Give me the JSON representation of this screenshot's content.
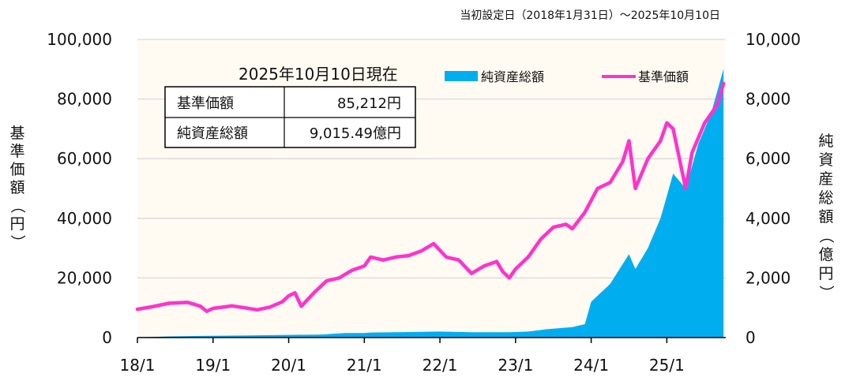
{
  "header_note": "当初設定日（2018年1月31日）～2025年10月10日",
  "info_box": {
    "title": "2025年10月10日現在",
    "rows": [
      {
        "label": "基準価額",
        "value": "85,212円"
      },
      {
        "label": "純資産総額",
        "value": "9,015.49億円"
      }
    ]
  },
  "colors": {
    "nav": "#ff33cc",
    "aum": "#00aeef",
    "plot_bg": "#fffaf2",
    "grid": "#d9d9d9"
  },
  "chart_data": {
    "type": "line+area",
    "xlabel": "",
    "x_ticks": [
      "18/1",
      "19/1",
      "20/1",
      "21/1",
      "22/1",
      "23/1",
      "24/1",
      "25/1"
    ],
    "x_range": [
      "2018-01",
      "2025-10"
    ],
    "left_axis": {
      "label": "基準価額（円）",
      "min": 0,
      "max": 100000,
      "ticks": [
        "0",
        "20,000",
        "40,000",
        "60,000",
        "80,000",
        "100,000"
      ]
    },
    "right_axis": {
      "label": "純資産総額（億円）",
      "min": 0,
      "max": 10000,
      "ticks": [
        "0",
        "2,000",
        "4,000",
        "6,000",
        "8,000",
        "10,000"
      ]
    },
    "legend": [
      {
        "name": "純資産総額",
        "kind": "area"
      },
      {
        "name": "基準価額",
        "kind": "line"
      }
    ],
    "legend_position": "top-right",
    "grid": true,
    "series": [
      {
        "name": "基準価額",
        "axis": "left",
        "points": [
          [
            "2018-01",
            9500
          ],
          [
            "2018-03",
            10200
          ],
          [
            "2018-06",
            11500
          ],
          [
            "2018-09",
            11800
          ],
          [
            "2018-11",
            10500
          ],
          [
            "2018-12",
            8800
          ],
          [
            "2019-01",
            9800
          ],
          [
            "2019-04",
            10600
          ],
          [
            "2019-06",
            10000
          ],
          [
            "2019-08",
            9300
          ],
          [
            "2019-10",
            10200
          ],
          [
            "2019-12",
            12000
          ],
          [
            "2020-01",
            14000
          ],
          [
            "2020-02",
            15000
          ],
          [
            "2020-03",
            10500
          ],
          [
            "2020-05",
            15000
          ],
          [
            "2020-07",
            19000
          ],
          [
            "2020-09",
            20000
          ],
          [
            "2020-11",
            22500
          ],
          [
            "2021-01",
            24000
          ],
          [
            "2021-02",
            27000
          ],
          [
            "2021-04",
            26000
          ],
          [
            "2021-06",
            27000
          ],
          [
            "2021-08",
            27500
          ],
          [
            "2021-10",
            29000
          ],
          [
            "2021-12",
            31500
          ],
          [
            "2022-02",
            27000
          ],
          [
            "2022-04",
            26000
          ],
          [
            "2022-06",
            21500
          ],
          [
            "2022-08",
            24000
          ],
          [
            "2022-10",
            25500
          ],
          [
            "2022-11",
            22000
          ],
          [
            "2022-12",
            20000
          ],
          [
            "2023-01",
            23000
          ],
          [
            "2023-03",
            27000
          ],
          [
            "2023-05",
            33000
          ],
          [
            "2023-07",
            37000
          ],
          [
            "2023-09",
            38000
          ],
          [
            "2023-10",
            36500
          ],
          [
            "2023-12",
            42000
          ],
          [
            "2024-02",
            50000
          ],
          [
            "2024-04",
            52000
          ],
          [
            "2024-06",
            59000
          ],
          [
            "2024-07",
            66000
          ],
          [
            "2024-08",
            50000
          ],
          [
            "2024-10",
            60000
          ],
          [
            "2024-12",
            66000
          ],
          [
            "2025-01",
            72000
          ],
          [
            "2025-02",
            70000
          ],
          [
            "2025-03",
            60000
          ],
          [
            "2025-04",
            50000
          ],
          [
            "2025-05",
            62000
          ],
          [
            "2025-07",
            72000
          ],
          [
            "2025-09",
            78000
          ],
          [
            "2025-10",
            85212
          ]
        ]
      },
      {
        "name": "純資産総額",
        "axis": "right",
        "points": [
          [
            "2018-01",
            5
          ],
          [
            "2018-06",
            40
          ],
          [
            "2019-01",
            60
          ],
          [
            "2019-06",
            70
          ],
          [
            "2020-01",
            90
          ],
          [
            "2020-06",
            100
          ],
          [
            "2020-10",
            150
          ],
          [
            "2021-01",
            150
          ],
          [
            "2021-02",
            170
          ],
          [
            "2021-06",
            180
          ],
          [
            "2022-01",
            200
          ],
          [
            "2022-06",
            180
          ],
          [
            "2022-12",
            180
          ],
          [
            "2023-03",
            200
          ],
          [
            "2023-06",
            280
          ],
          [
            "2023-10",
            350
          ],
          [
            "2023-12",
            450
          ],
          [
            "2024-01",
            1200
          ],
          [
            "2024-04",
            1800
          ],
          [
            "2024-07",
            2800
          ],
          [
            "2024-08",
            2300
          ],
          [
            "2024-10",
            3000
          ],
          [
            "2024-12",
            4000
          ],
          [
            "2025-02",
            5500
          ],
          [
            "2025-04",
            5000
          ],
          [
            "2025-06",
            6500
          ],
          [
            "2025-08",
            7500
          ],
          [
            "2025-10",
            9015
          ]
        ]
      }
    ]
  }
}
